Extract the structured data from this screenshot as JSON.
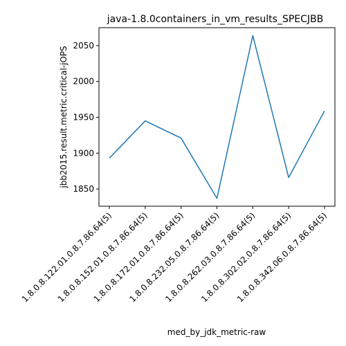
{
  "chart_data": {
    "type": "line",
    "title": "java-1.8.0containers_in_vm_results_SPECJBB",
    "xlabel": "med_by_jdk_metric-raw",
    "ylabel": "jbb2015.result.metric.critical-jOPS",
    "categories": [
      "1.8.0.8.122.01.0.8.7.86.64(5)",
      "1.8.0.8.152.01.0.8.7.86.64(5)",
      "1.8.0.8.172.01.0.8.7.86.64(5)",
      "1.8.0.8.232.05.0.8.7.86.64(5)",
      "1.8.0.8.262.03.0.8.7.86.64(5)",
      "1.8.0.8.302.02.0.8.7.86.64(5)",
      "1.8.0.8.342.06.0.8.7.86.64(5)"
    ],
    "series": [
      {
        "values": [
          1893,
          1945,
          1921,
          1837,
          2064,
          1866,
          1959
        ]
      }
    ],
    "ylim": [
      1826,
      2075
    ],
    "yticks": [
      1850,
      1900,
      1950,
      2000,
      2050
    ],
    "grid": false,
    "line_color": "#1f77b4"
  }
}
